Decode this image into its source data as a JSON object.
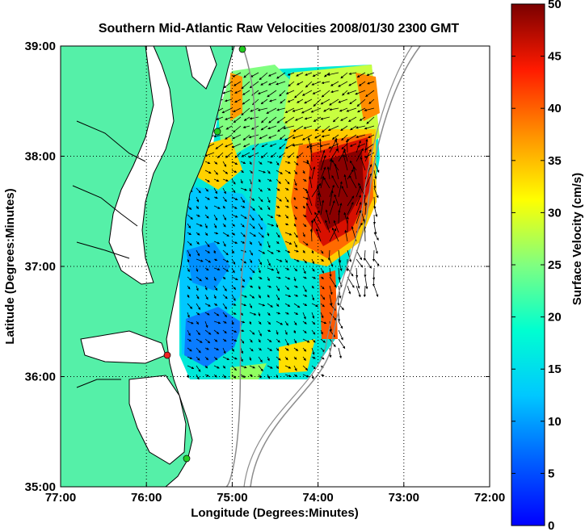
{
  "chart_data": {
    "type": "heatmap",
    "title": "Southern Mid-Atlantic Raw Velocities 2008/01/30 2300 GMT",
    "xlabel": "Longitude (Degrees:Minutes)",
    "ylabel": "Latitude (Degrees:Minutes)",
    "colorbar_label": "Surface Velocity (cm/s)",
    "x_ticks": [
      "77:00",
      "76:00",
      "75:00",
      "74:00",
      "73:00",
      "72:00"
    ],
    "y_ticks": [
      "39:00",
      "38:00",
      "37:00",
      "36:00",
      "35:00"
    ],
    "colorbar_ticks": [
      "0",
      "5",
      "10",
      "15",
      "20",
      "25",
      "30",
      "35",
      "40",
      "45",
      "50"
    ],
    "xlim": [
      -77,
      -72
    ],
    "ylim": [
      35,
      39
    ],
    "clim": [
      0,
      50
    ],
    "grid": true,
    "colormap": "jet",
    "colors": {
      "title": "#0000cc",
      "land": "#55f0a8",
      "coastline": "#000000",
      "bathymetry": "#8c8c8c",
      "site_green": "#22cc22",
      "site_red": "#ee2222"
    }
  }
}
